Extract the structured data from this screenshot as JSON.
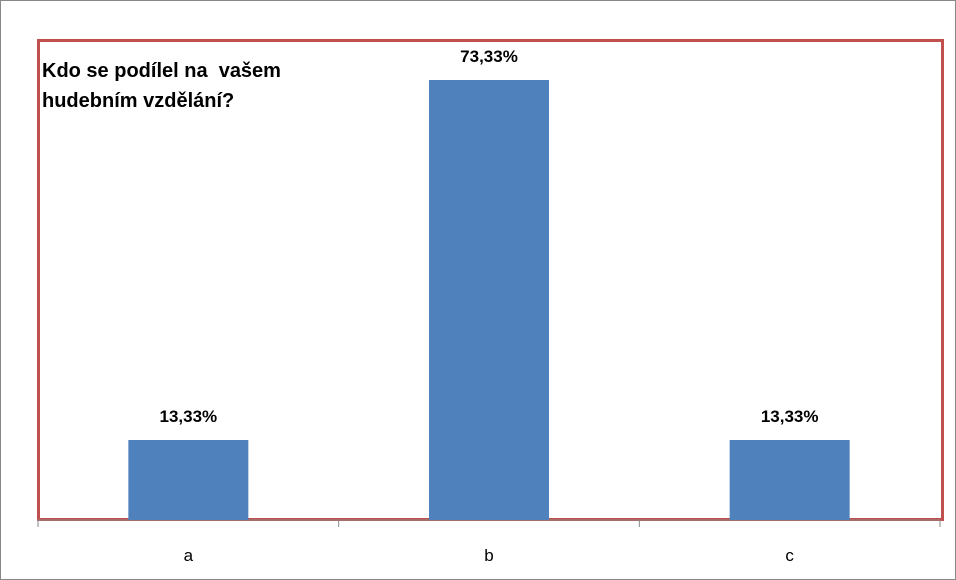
{
  "chart_data": {
    "type": "bar",
    "title": "Kdo se podílel na  vašem hudebním vzdělání?",
    "categories": [
      "a",
      "b",
      "c"
    ],
    "values": [
      13.33,
      73.33,
      13.33
    ],
    "value_labels": [
      "13,33%",
      "73,33%",
      "13,33%"
    ],
    "color": "#4f81bd"
  }
}
